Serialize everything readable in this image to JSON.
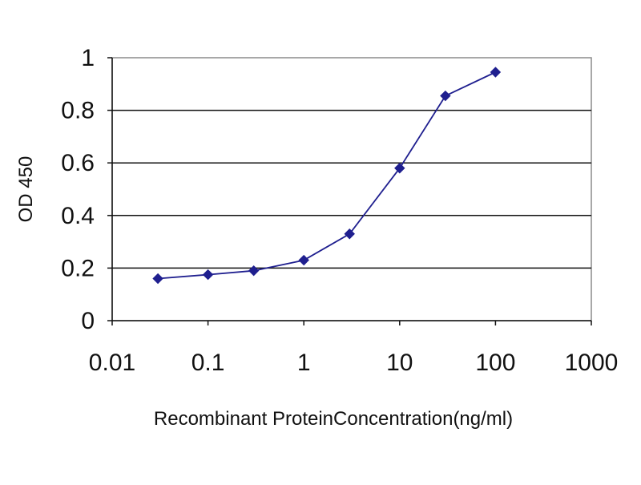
{
  "chart_data": {
    "type": "line",
    "title": "",
    "xlabel": "Recombinant ProteinConcentration(ng/ml)",
    "ylabel": "OD 450",
    "x_scale": "log",
    "xlim": [
      0.01,
      1000
    ],
    "ylim": [
      0,
      1
    ],
    "x_ticks": [
      0.01,
      0.1,
      1,
      10,
      100,
      1000
    ],
    "x_tick_labels": [
      "0.01",
      "0.1",
      "1",
      "10",
      "100",
      "1000"
    ],
    "y_ticks": [
      0,
      0.2,
      0.4,
      0.6,
      0.8,
      1
    ],
    "y_tick_labels": [
      "0",
      "0.2",
      "0.4",
      "0.6",
      "0.8",
      "1"
    ],
    "grid": "horizontal",
    "legend": "none",
    "series": [
      {
        "x": [
          0.03,
          0.1,
          0.3,
          1,
          3,
          10,
          30,
          100
        ],
        "y": [
          0.16,
          0.175,
          0.19,
          0.23,
          0.33,
          0.58,
          0.855,
          0.945
        ],
        "color": "#1f1f8f",
        "marker": "diamond"
      }
    ]
  }
}
